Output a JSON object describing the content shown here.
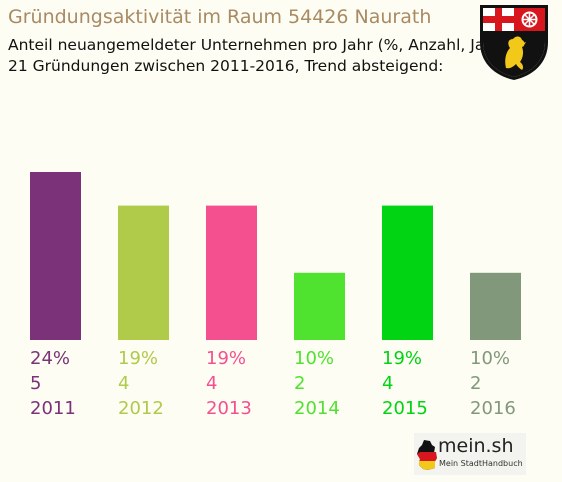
{
  "header": {
    "title": "Gründungsaktivität im Raum 54426 Naurath",
    "subtitle_line1": "Anteil neuangemeldeter Unternehmen pro Jahr (%, Anzahl, Jahr)",
    "subtitle_line2": "21 Gründungen zwischen 2011-2016, Trend absteigend:"
  },
  "crest": {
    "icon": "rhineland-palatinate-coat-of-arms-icon"
  },
  "logo": {
    "word": "mein.sh",
    "tagline": "Mein StadtHandbuch",
    "icon": "germany-map-icon"
  },
  "chart_data": {
    "type": "bar",
    "categories": [
      "2011",
      "2012",
      "2013",
      "2014",
      "2015",
      "2016"
    ],
    "values": [
      5,
      4,
      4,
      2,
      4,
      2
    ],
    "percent_labels": [
      "24%",
      "19%",
      "19%",
      "10%",
      "19%",
      "10%"
    ],
    "colors": [
      "#7b3278",
      "#b0ca4a",
      "#f45090",
      "#4fe32f",
      "#00d413",
      "#81987a"
    ],
    "grid": false,
    "legend": "none",
    "ylim": [
      0,
      5
    ]
  }
}
